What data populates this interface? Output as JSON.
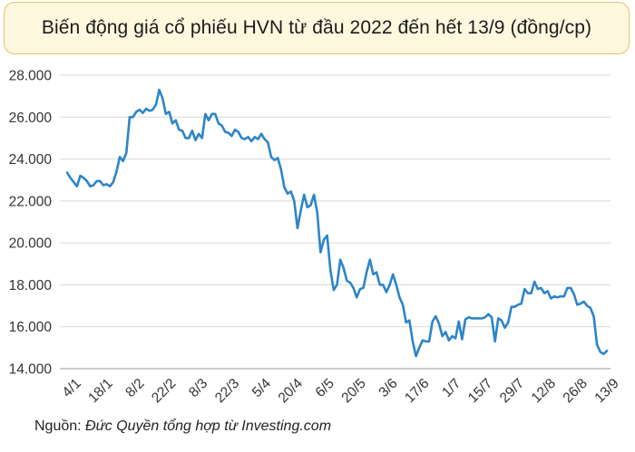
{
  "chart_data": {
    "type": "line",
    "title": "Biến động giá cổ phiếu HVN từ đầu 2022 đến hết 13/9 (đồng/cp)",
    "xlabel": "",
    "ylabel": "",
    "ylim": [
      14000,
      28000
    ],
    "yticks": [
      14000,
      16000,
      18000,
      20000,
      22000,
      24000,
      26000,
      28000
    ],
    "ytick_labels": [
      "14.000",
      "16.000",
      "18.000",
      "20.000",
      "22.000",
      "24.000",
      "26.000",
      "28.000"
    ],
    "xtick_labels": [
      "4/1",
      "18/1",
      "8/2",
      "22/2",
      "8/3",
      "22/3",
      "5/4",
      "20/4",
      "6/5",
      "20/5",
      "3/6",
      "17/6",
      "1/7",
      "15/7",
      "29/7",
      "12/8",
      "26/8",
      "13/9"
    ],
    "grid": "horizontal",
    "legend": "none",
    "line_color": "#2d85c8",
    "series": [
      {
        "values": [
          23350,
          23100,
          22900,
          22700,
          23200,
          23100,
          22950,
          22700,
          22750,
          22950,
          22950,
          22750,
          22800,
          22700,
          22900,
          23400,
          24100,
          23900,
          24300,
          26000,
          26000,
          26250,
          26350,
          26200,
          26400,
          26300,
          26350,
          26600,
          27300,
          26900,
          26150,
          26250,
          25700,
          25850,
          25400,
          25350,
          25000,
          25000,
          25350,
          24900,
          25200,
          25000,
          26150,
          25850,
          26150,
          26150,
          25700,
          25600,
          25300,
          25250,
          25100,
          25400,
          25300,
          25000,
          24950,
          25050,
          24850,
          25050,
          24950,
          25200,
          24950,
          24800,
          24100,
          23950,
          24050,
          23500,
          22650,
          22350,
          22450,
          22000,
          20700,
          21550,
          22300,
          21700,
          21800,
          22300,
          21450,
          19550,
          20150,
          20350,
          18700,
          17750,
          18000,
          19200,
          18800,
          18200,
          18100,
          17850,
          17400,
          17800,
          17850,
          18600,
          19200,
          18500,
          18600,
          18000,
          18000,
          17650,
          18000,
          18500,
          18000,
          17400,
          17050,
          16200,
          16300,
          15300,
          14600,
          15000,
          15350,
          15300,
          15300,
          16250,
          16500,
          16150,
          15550,
          15750,
          15350,
          15550,
          15450,
          16250,
          15400,
          16350,
          16450,
          16400,
          16400,
          16400,
          16400,
          16450,
          16600,
          16450,
          15300,
          16400,
          16300,
          15950,
          16200,
          16950,
          16950,
          17050,
          17100,
          17800,
          17600,
          17600,
          18150,
          17800,
          17850,
          17600,
          17700,
          17350,
          17450,
          17400,
          17450,
          17450,
          17850,
          17850,
          17550,
          17050,
          17100,
          17200,
          17000,
          16900,
          16500,
          15150,
          14800,
          14700,
          14850
        ]
      }
    ]
  },
  "source": {
    "prefix": "Nguồn: ",
    "text": "Đức Quyền tổng hợp từ Investing.com"
  }
}
